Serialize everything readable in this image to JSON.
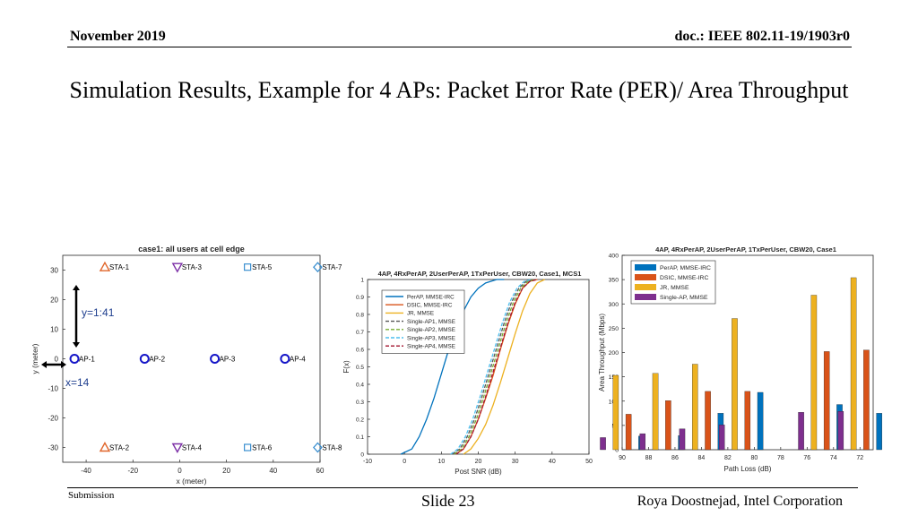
{
  "header": {
    "left": "November 2019",
    "right": "doc.: IEEE 802.11-19/1903r0"
  },
  "slide_title": "Simulation Results, Example for 4 APs: Packet Error Rate (PER)/ Area Throughput",
  "footer": {
    "left": "Submission",
    "center": "Slide 23",
    "right": "Roya Doostnejad, Intel Corporation"
  },
  "colors": {
    "ap_marker": "#1515c8",
    "sta_marker_orange": "#e0652a",
    "sta_marker_purple": "#7b2fa6",
    "sta_marker_blue": "#3a8fd0"
  },
  "chart_data": [
    {
      "type": "scatter",
      "title": "case1: all users at cell edge",
      "xlabel": "x (meter)",
      "ylabel": "y (meter)",
      "xlim": [
        -50,
        60
      ],
      "ylim": [
        -35,
        35
      ],
      "xticks": [
        -40,
        -20,
        0,
        20,
        40,
        60
      ],
      "yticks": [
        -30,
        -20,
        -10,
        0,
        10,
        20,
        30
      ],
      "grid": false,
      "points": [
        {
          "label": "AP-1",
          "x": -45,
          "y": 0,
          "marker": "circle",
          "color": "#1515c8"
        },
        {
          "label": "AP-2",
          "x": -15,
          "y": 0,
          "marker": "circle",
          "color": "#1515c8"
        },
        {
          "label": "AP-3",
          "x": 15,
          "y": 0,
          "marker": "circle",
          "color": "#1515c8"
        },
        {
          "label": "AP-4",
          "x": 45,
          "y": 0,
          "marker": "circle",
          "color": "#1515c8"
        },
        {
          "label": "STA-1",
          "x": -32,
          "y": 31,
          "marker": "triangle-up",
          "color": "#e0652a"
        },
        {
          "label": "STA-2",
          "x": -32,
          "y": -30,
          "marker": "triangle-up",
          "color": "#e0652a"
        },
        {
          "label": "STA-3",
          "x": -1,
          "y": 31,
          "marker": "triangle-down",
          "color": "#7b2fa6"
        },
        {
          "label": "STA-4",
          "x": -1,
          "y": -30,
          "marker": "triangle-down",
          "color": "#7b2fa6"
        },
        {
          "label": "STA-5",
          "x": 29,
          "y": 31,
          "marker": "square",
          "color": "#3a8fd0"
        },
        {
          "label": "STA-6",
          "x": 29,
          "y": -30,
          "marker": "square",
          "color": "#3a8fd0"
        },
        {
          "label": "STA-7",
          "x": 59,
          "y": 31,
          "marker": "diamond",
          "color": "#3a8fd0"
        },
        {
          "label": "STA-8",
          "x": 59,
          "y": -30,
          "marker": "diamond",
          "color": "#3a8fd0"
        }
      ],
      "annotations": {
        "y_span": "y=1:41",
        "x_span": "x=14"
      }
    },
    {
      "type": "line",
      "title": "4AP, 4RxPerAP, 2UserPerAP, 1TxPerUser, CBW20, Case1, MCS1",
      "xlabel": "Post SNR (dB)",
      "ylabel": "F(x)",
      "xlim": [
        -10,
        50
      ],
      "ylim": [
        0,
        1
      ],
      "xticks": [
        -10,
        0,
        10,
        20,
        30,
        40,
        50
      ],
      "yticks": [
        0,
        0.1,
        0.2,
        0.3,
        0.4,
        0.5,
        0.6,
        0.7,
        0.8,
        0.9,
        1
      ],
      "grid": false,
      "legend_position": "top-left",
      "series": [
        {
          "name": "PerAP, MMSE-IRC",
          "color": "#0072bd",
          "dash": "solid",
          "x": [
            -1,
            2,
            4,
            6,
            8,
            10,
            12,
            14,
            16,
            18,
            20,
            22,
            25,
            27
          ],
          "y": [
            0,
            0.03,
            0.1,
            0.2,
            0.32,
            0.46,
            0.6,
            0.72,
            0.82,
            0.9,
            0.95,
            0.98,
            1.0,
            1.0
          ]
        },
        {
          "name": "DSIC, MMSE-IRC",
          "color": "#d95319",
          "dash": "solid",
          "x": [
            14,
            16,
            18,
            20,
            22,
            24,
            26,
            28,
            30,
            32,
            34,
            36
          ],
          "y": [
            0,
            0.03,
            0.1,
            0.2,
            0.32,
            0.45,
            0.6,
            0.74,
            0.86,
            0.95,
            0.99,
            1.0
          ]
        },
        {
          "name": "JR, MMSE",
          "color": "#edb120",
          "dash": "solid",
          "x": [
            16,
            18,
            20,
            22,
            24,
            26,
            28,
            30,
            32,
            34,
            36,
            38
          ],
          "y": [
            0,
            0.03,
            0.09,
            0.17,
            0.28,
            0.41,
            0.55,
            0.69,
            0.82,
            0.92,
            0.98,
            1.0
          ]
        },
        {
          "name": "Single-AP1, MMSE",
          "color": "#555555",
          "dash": "dashed",
          "x": [
            13,
            15,
            17,
            19,
            21,
            23,
            25,
            27,
            29,
            31,
            33,
            35
          ],
          "y": [
            0,
            0.03,
            0.1,
            0.2,
            0.33,
            0.47,
            0.61,
            0.75,
            0.87,
            0.95,
            0.99,
            1.0
          ]
        },
        {
          "name": "Single-AP2, MMSE",
          "color": "#77ac30",
          "dash": "dashed",
          "x": [
            13.5,
            15.5,
            17.5,
            19.5,
            21.5,
            23.5,
            25.5,
            27.5,
            29.5,
            31.5,
            33.5,
            35.5
          ],
          "y": [
            0,
            0.03,
            0.1,
            0.2,
            0.33,
            0.47,
            0.61,
            0.75,
            0.87,
            0.95,
            0.99,
            1.0
          ]
        },
        {
          "name": "Single-AP3, MMSE",
          "color": "#4dbeee",
          "dash": "dashed",
          "x": [
            12.5,
            14.5,
            16.5,
            18.5,
            20.5,
            22.5,
            24.5,
            26.5,
            28.5,
            30.5,
            32.5,
            34.5
          ],
          "y": [
            0,
            0.03,
            0.1,
            0.2,
            0.33,
            0.47,
            0.61,
            0.75,
            0.87,
            0.95,
            0.99,
            1.0
          ]
        },
        {
          "name": "Single-AP4, MMSE",
          "color": "#a2142f",
          "dash": "dashed",
          "x": [
            14,
            16,
            18,
            20,
            22,
            24,
            26,
            28,
            30,
            32,
            34,
            36
          ],
          "y": [
            0,
            0.03,
            0.1,
            0.2,
            0.33,
            0.47,
            0.61,
            0.75,
            0.87,
            0.95,
            0.99,
            1.0
          ]
        }
      ]
    },
    {
      "type": "bar",
      "title": "4AP, 4RxPerAP, 2UserPerAP, 1TxPerUser, CBW20, Case1",
      "xlabel": "Path Loss (dB)",
      "ylabel": "Area Throughput (Mbps)",
      "ylim": [
        0,
        400
      ],
      "yticks": [
        0,
        50,
        100,
        150,
        200,
        250,
        300,
        350,
        400
      ],
      "xlim": [
        90,
        71
      ],
      "xticks": [
        90,
        88,
        86,
        84,
        82,
        80,
        78,
        76,
        74,
        72
      ],
      "grid": false,
      "legend_position": "top-left",
      "categories": [
        90,
        87,
        84,
        81,
        78,
        75,
        72
      ],
      "series": [
        {
          "name": "PerAP, MMSE-IRC",
          "color": "#0072bd",
          "values": [
            28,
            29,
            75,
            118,
            0,
            93,
            75
          ]
        },
        {
          "name": "DSIC, MMSE-IRC",
          "color": "#d95319",
          "values": [
            73,
            101,
            120,
            120,
            0,
            202,
            205
          ]
        },
        {
          "name": "JR, MMSE",
          "color": "#edb120",
          "values": [
            153,
            157,
            176,
            270,
            0,
            318,
            354
          ]
        },
        {
          "name": "Single-AP, MMSE",
          "color": "#7e2f8e",
          "values": [
            25,
            33,
            43,
            51,
            0,
            77,
            79
          ]
        }
      ]
    }
  ]
}
